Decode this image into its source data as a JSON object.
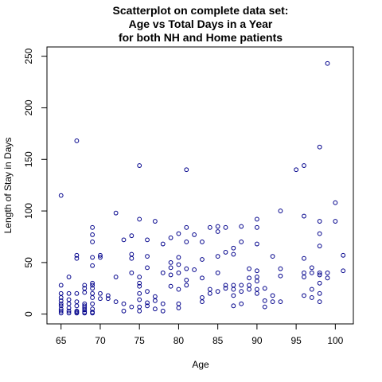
{
  "chart_data": {
    "type": "scatter",
    "title_lines": [
      "Scatterplot on complete data set:",
      "Age vs Total Days in a Year",
      "for both NH and Home patients"
    ],
    "xlabel": "Age",
    "ylabel": "Length of Stay in Days",
    "xlim": [
      63.2,
      102.3
    ],
    "ylim": [
      -9.5,
      259
    ],
    "xticks": [
      65,
      70,
      75,
      80,
      85,
      90,
      95,
      100
    ],
    "yticks": [
      0,
      50,
      100,
      150,
      200,
      250
    ],
    "grid": false,
    "point_color": "#00008B",
    "point_shape": "open-circle",
    "points": [
      [
        65,
        1
      ],
      [
        65,
        3
      ],
      [
        65,
        5
      ],
      [
        65,
        8
      ],
      [
        65,
        10
      ],
      [
        65,
        13
      ],
      [
        65,
        16
      ],
      [
        65,
        20
      ],
      [
        65,
        28
      ],
      [
        65,
        115
      ],
      [
        66,
        1
      ],
      [
        66,
        3
      ],
      [
        66,
        6
      ],
      [
        66,
        10
      ],
      [
        66,
        14
      ],
      [
        66,
        20
      ],
      [
        66,
        36
      ],
      [
        67,
        1
      ],
      [
        67,
        2
      ],
      [
        67,
        3
      ],
      [
        67,
        8
      ],
      [
        67,
        12
      ],
      [
        67,
        20
      ],
      [
        67,
        54
      ],
      [
        67,
        57
      ],
      [
        67,
        168
      ],
      [
        68,
        1
      ],
      [
        68,
        2
      ],
      [
        68,
        4
      ],
      [
        68,
        6
      ],
      [
        68,
        8
      ],
      [
        68,
        10
      ],
      [
        68,
        21
      ],
      [
        68,
        25
      ],
      [
        68,
        28
      ],
      [
        69,
        1
      ],
      [
        69,
        2
      ],
      [
        69,
        5
      ],
      [
        69,
        10
      ],
      [
        69,
        16
      ],
      [
        69,
        20
      ],
      [
        69,
        25
      ],
      [
        69,
        28
      ],
      [
        69,
        30
      ],
      [
        69,
        47
      ],
      [
        69,
        55
      ],
      [
        69,
        70
      ],
      [
        69,
        77
      ],
      [
        69,
        84
      ],
      [
        70,
        15
      ],
      [
        70,
        20
      ],
      [
        70,
        55
      ],
      [
        70,
        57
      ],
      [
        71,
        15
      ],
      [
        71,
        18
      ],
      [
        72,
        12
      ],
      [
        72,
        36
      ],
      [
        72,
        98
      ],
      [
        73,
        3
      ],
      [
        73,
        10
      ],
      [
        73,
        72
      ],
      [
        74,
        7
      ],
      [
        74,
        40
      ],
      [
        74,
        54
      ],
      [
        74,
        58
      ],
      [
        74,
        76
      ],
      [
        75,
        3
      ],
      [
        75,
        7
      ],
      [
        75,
        14
      ],
      [
        75,
        20
      ],
      [
        75,
        27
      ],
      [
        75,
        30
      ],
      [
        75,
        36
      ],
      [
        75,
        92
      ],
      [
        75,
        144
      ],
      [
        76,
        8
      ],
      [
        76,
        11
      ],
      [
        76,
        22
      ],
      [
        76,
        45
      ],
      [
        76,
        56
      ],
      [
        76,
        72
      ],
      [
        77,
        5
      ],
      [
        77,
        13
      ],
      [
        77,
        17
      ],
      [
        77,
        90
      ],
      [
        78,
        3
      ],
      [
        78,
        10
      ],
      [
        78,
        40
      ],
      [
        78,
        68
      ],
      [
        79,
        27
      ],
      [
        79,
        38
      ],
      [
        79,
        45
      ],
      [
        79,
        50
      ],
      [
        79,
        74
      ],
      [
        80,
        6
      ],
      [
        80,
        10
      ],
      [
        80,
        24
      ],
      [
        80,
        40
      ],
      [
        80,
        48
      ],
      [
        80,
        55
      ],
      [
        80,
        78
      ],
      [
        81,
        28
      ],
      [
        81,
        33
      ],
      [
        81,
        44
      ],
      [
        81,
        70
      ],
      [
        81,
        84
      ],
      [
        81,
        140
      ],
      [
        82,
        43
      ],
      [
        82,
        77
      ],
      [
        83,
        12
      ],
      [
        83,
        16
      ],
      [
        83,
        35
      ],
      [
        83,
        53
      ],
      [
        83,
        70
      ],
      [
        84,
        20
      ],
      [
        84,
        24
      ],
      [
        84,
        84
      ],
      [
        85,
        22
      ],
      [
        85,
        40
      ],
      [
        85,
        56
      ],
      [
        85,
        80
      ],
      [
        85,
        85
      ],
      [
        86,
        25
      ],
      [
        86,
        28
      ],
      [
        86,
        60
      ],
      [
        86,
        84
      ],
      [
        87,
        8
      ],
      [
        87,
        18
      ],
      [
        87,
        24
      ],
      [
        87,
        28
      ],
      [
        87,
        58
      ],
      [
        87,
        64
      ],
      [
        88,
        10
      ],
      [
        88,
        22
      ],
      [
        88,
        28
      ],
      [
        88,
        70
      ],
      [
        88,
        85
      ],
      [
        89,
        24
      ],
      [
        89,
        28
      ],
      [
        89,
        35
      ],
      [
        89,
        44
      ],
      [
        90,
        20
      ],
      [
        90,
        24
      ],
      [
        90,
        32
      ],
      [
        90,
        36
      ],
      [
        90,
        42
      ],
      [
        90,
        68
      ],
      [
        90,
        84
      ],
      [
        90,
        92
      ],
      [
        91,
        7
      ],
      [
        91,
        13
      ],
      [
        91,
        25
      ],
      [
        92,
        12
      ],
      [
        92,
        18
      ],
      [
        92,
        56
      ],
      [
        93,
        12
      ],
      [
        93,
        37
      ],
      [
        93,
        44
      ],
      [
        93,
        100
      ],
      [
        95,
        140
      ],
      [
        96,
        18
      ],
      [
        96,
        36
      ],
      [
        96,
        40
      ],
      [
        96,
        54
      ],
      [
        96,
        95
      ],
      [
        96,
        144
      ],
      [
        97,
        16
      ],
      [
        97,
        24
      ],
      [
        97,
        40
      ],
      [
        97,
        45
      ],
      [
        98,
        12
      ],
      [
        98,
        20
      ],
      [
        98,
        30
      ],
      [
        98,
        38
      ],
      [
        98,
        40
      ],
      [
        98,
        66
      ],
      [
        98,
        78
      ],
      [
        98,
        90
      ],
      [
        98,
        162
      ],
      [
        99,
        35
      ],
      [
        99,
        40
      ],
      [
        99,
        243
      ],
      [
        100,
        90
      ],
      [
        100,
        108
      ],
      [
        101,
        42
      ],
      [
        101,
        57
      ]
    ]
  }
}
